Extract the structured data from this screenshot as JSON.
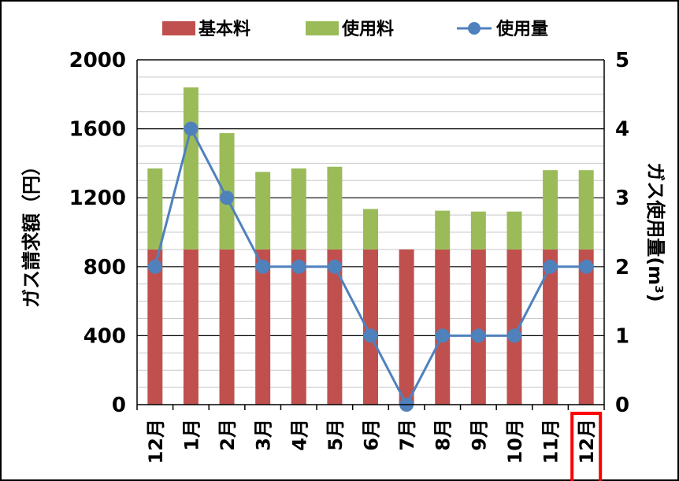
{
  "chart_data": {
    "type": "bar",
    "stacked": true,
    "categories": [
      "12月",
      "1月",
      "2月",
      "3月",
      "4月",
      "5月",
      "6月",
      "7月",
      "8月",
      "9月",
      "10月",
      "11月",
      "12月"
    ],
    "highlighted_category_index": 12,
    "highlight_color": "#ff0000",
    "series": [
      {
        "name": "基本料",
        "kind": "bar",
        "axis": "left",
        "color": "#c0504d",
        "values": [
          900,
          900,
          900,
          900,
          900,
          900,
          900,
          900,
          900,
          900,
          900,
          900,
          900
        ]
      },
      {
        "name": "使用料",
        "kind": "bar",
        "axis": "left",
        "color": "#9bbb59",
        "values": [
          470,
          940,
          675,
          450,
          470,
          480,
          235,
          0,
          225,
          220,
          220,
          460,
          460
        ]
      },
      {
        "name": "使用量",
        "kind": "line",
        "axis": "right",
        "color": "#4f81bd",
        "values": [
          2,
          4,
          3,
          2,
          2,
          2,
          1,
          0,
          1,
          1,
          1,
          2,
          2
        ]
      }
    ],
    "y_left": {
      "label": "ガス請求額（円）",
      "ylim": [
        0,
        2000
      ],
      "ticks": [
        "0",
        "400",
        "800",
        "1200",
        "1600",
        "2000"
      ],
      "major_step": 400,
      "minor_step": 100
    },
    "y_right": {
      "label": "ガス使用量(m³)",
      "ylim": [
        0,
        5
      ],
      "ticks": [
        "0",
        "1",
        "2",
        "3",
        "4",
        "5"
      ]
    },
    "legend": {
      "position": "top"
    },
    "grid": true
  }
}
